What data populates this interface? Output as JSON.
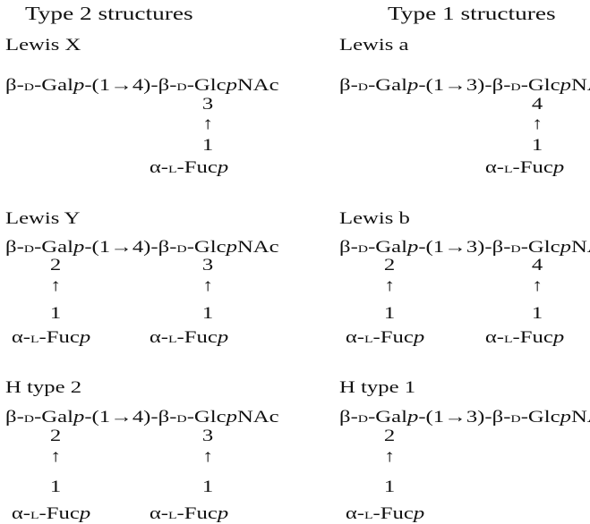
{
  "headers": {
    "type2": "Type 2 structures",
    "type1": "Type 1 structures"
  },
  "structures": [
    {
      "label": "Lewis X",
      "chain": {
        "gal_anomer": "β-",
        "gal_config": "D",
        "gal_name": "-Gal",
        "gal_ring": "p",
        "linkage": "-(1→4)-",
        "glc_anomer": "β-",
        "glc_config": "D",
        "glc_name": "-Glc",
        "glc_ring": "p",
        "glc_suffix": "NAc"
      },
      "branches": [
        {
          "residue": "GlcNAc",
          "position": "3",
          "arrow": "↑",
          "from": "1",
          "fucose": {
            "anomer": "α-",
            "config": "L",
            "name": "-Fuc",
            "ring": "p"
          }
        }
      ]
    },
    {
      "label": "Lewis a",
      "chain": {
        "gal_anomer": "β-",
        "gal_config": "D",
        "gal_name": "-Gal",
        "gal_ring": "p",
        "linkage": "-(1→3)-",
        "glc_anomer": "β-",
        "glc_config": "D",
        "glc_name": "-Glc",
        "glc_ring": "p",
        "glc_suffix": "NAc"
      },
      "branches": [
        {
          "residue": "GlcNAc",
          "position": "4",
          "arrow": "↑",
          "from": "1",
          "fucose": {
            "anomer": "α-",
            "config": "L",
            "name": "-Fuc",
            "ring": "p"
          }
        }
      ]
    },
    {
      "label": "Lewis Y",
      "chain": {
        "gal_anomer": "β-",
        "gal_config": "D",
        "gal_name": "-Gal",
        "gal_ring": "p",
        "linkage": "-(1→4)-",
        "glc_anomer": "β-",
        "glc_config": "D",
        "glc_name": "-Glc",
        "glc_ring": "p",
        "glc_suffix": "NAc"
      },
      "branches": [
        {
          "residue": "Gal",
          "position": "2",
          "arrow": "↑",
          "from": "1",
          "fucose": {
            "anomer": "α-",
            "config": "L",
            "name": "-Fuc",
            "ring": "p"
          }
        },
        {
          "residue": "GlcNAc",
          "position": "3",
          "arrow": "↑",
          "from": "1",
          "fucose": {
            "anomer": "α-",
            "config": "L",
            "name": "-Fuc",
            "ring": "p"
          }
        }
      ]
    },
    {
      "label": "Lewis b",
      "chain": {
        "gal_anomer": "β-",
        "gal_config": "D",
        "gal_name": "-Gal",
        "gal_ring": "p",
        "linkage": "-(1→3)-",
        "glc_anomer": "β-",
        "glc_config": "D",
        "glc_name": "-Glc",
        "glc_ring": "p",
        "glc_suffix": "NAc"
      },
      "branches": [
        {
          "residue": "Gal",
          "position": "2",
          "arrow": "↑",
          "from": "1",
          "fucose": {
            "anomer": "α-",
            "config": "L",
            "name": "-Fuc",
            "ring": "p"
          }
        },
        {
          "residue": "GlcNAc",
          "position": "4",
          "arrow": "↑",
          "from": "1",
          "fucose": {
            "anomer": "α-",
            "config": "L",
            "name": "-Fuc",
            "ring": "p"
          }
        }
      ]
    },
    {
      "label": "H type 2",
      "chain": {
        "gal_anomer": "β-",
        "gal_config": "D",
        "gal_name": "-Gal",
        "gal_ring": "p",
        "linkage": "-(1→4)-",
        "glc_anomer": "β-",
        "glc_config": "D",
        "glc_name": "-Glc",
        "glc_ring": "p",
        "glc_suffix": "NAc"
      },
      "branches": [
        {
          "residue": "Gal",
          "position": "2",
          "arrow": "↑",
          "from": "1",
          "fucose": {
            "anomer": "α-",
            "config": "L",
            "name": "-Fuc",
            "ring": "p"
          }
        },
        {
          "residue": "GlcNAc",
          "position": "3",
          "arrow": "↑",
          "from": "1",
          "fucose": {
            "anomer": "α-",
            "config": "L",
            "name": "-Fuc",
            "ring": "p"
          }
        }
      ]
    },
    {
      "label": "H type 1",
      "chain": {
        "gal_anomer": "β-",
        "gal_config": "D",
        "gal_name": "-Gal",
        "gal_ring": "p",
        "linkage": "-(1→3)-",
        "glc_anomer": "β-",
        "glc_config": "D",
        "glc_name": "-Glc",
        "glc_ring": "p",
        "glc_suffix": "NAc"
      },
      "branches": [
        {
          "residue": "Gal",
          "position": "2",
          "arrow": "↑",
          "from": "1",
          "fucose": {
            "anomer": "α-",
            "config": "L",
            "name": "-Fuc",
            "ring": "p"
          }
        }
      ]
    }
  ]
}
